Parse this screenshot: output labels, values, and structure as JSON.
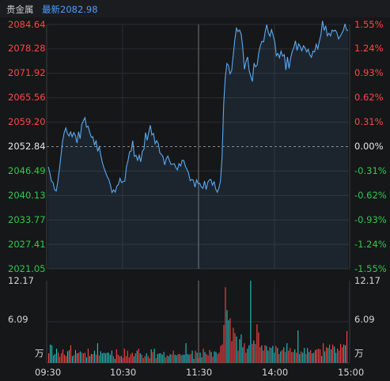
{
  "header": {
    "instrument_name": "贵金属",
    "latest_label": "最新2082.98"
  },
  "price_axis": {
    "left_labels": [
      "2084.64",
      "2078.28",
      "2071.92",
      "2065.56",
      "2059.20",
      "2052.84",
      "2046.49",
      "2040.13",
      "2033.77",
      "2027.41",
      "2021.05"
    ],
    "right_labels": [
      "1.55%",
      "1.24%",
      "0.93%",
      "0.62%",
      "0.31%",
      "0.00%",
      "-0.31%",
      "-0.62%",
      "-0.93%",
      "-1.24%",
      "-1.55%"
    ]
  },
  "volume_axis": {
    "left_labels": [
      "12.17",
      "6.09",
      "万"
    ],
    "right_labels": [
      "12.17",
      "6.09",
      "万"
    ]
  },
  "time_axis": [
    "09:30",
    "10:30",
    "11:30",
    "14:00",
    "15:00"
  ],
  "colors": {
    "up": "#ff4545",
    "down": "#2fc94f",
    "neutral": "#e6e6e6",
    "price_line": "#5aa9f0",
    "volume_up": "#ff4545",
    "volume_down": "#27c2c2"
  },
  "chart_data": [
    {
      "type": "line",
      "title": "",
      "xlabel": "",
      "ylabel": "",
      "x_ticks": [
        "09:30",
        "10:30",
        "11:30",
        "14:00",
        "15:00"
      ],
      "ylim": [
        2021.05,
        2084.64
      ],
      "prev_close": 2052.84,
      "series": [
        {
          "values": [
            2047.6,
            2046.0,
            2043.9,
            2043.5,
            2041.6,
            2041.3,
            2043.8,
            2047.0,
            2050.6,
            2054.3,
            2056.5,
            2057.7,
            2056.3,
            2055.6,
            2056.7,
            2055.4,
            2056.5,
            2055.7,
            2053.8,
            2056.7,
            2054.9,
            2058.6,
            2059.6,
            2060.4,
            2057.9,
            2058.2,
            2056.6,
            2055.3,
            2055.4,
            2053.2,
            2054.5,
            2051.6,
            2052.8,
            2050.5,
            2048.6,
            2047.2,
            2046.1,
            2045.0,
            2044.3,
            2042.8,
            2040.9,
            2041.6,
            2041.0,
            2042.6,
            2043.0,
            2044.6,
            2043.5,
            2043.8,
            2043.9,
            2047.6,
            2049.2,
            2051.5,
            2051.7,
            2054.4,
            2050.3,
            2050.6,
            2049.3,
            2050.6,
            2048.9,
            2051.6,
            2052.2,
            2056.5,
            2054.5,
            2056.5,
            2058.4,
            2055.9,
            2056.3,
            2053.6,
            2054.4,
            2053.6,
            2051.2,
            2050.8,
            2050.2,
            2048.1,
            2049.7,
            2050.4,
            2049.2,
            2048.2,
            2048.3,
            2048.4,
            2047.4,
            2046.8,
            2048.4,
            2047.8,
            2049.3,
            2049.2,
            2047.7,
            2046.9,
            2045.9,
            2044.0,
            2044.3,
            2044.1,
            2042.3,
            2044.2,
            2043.2,
            2043.3,
            2042.3,
            2042.0,
            2043.9,
            2041.7,
            2043.5,
            2044.2,
            2044.3,
            2042.8,
            2043.7,
            2041.8,
            2041.0,
            2042.1,
            2043.9,
            2050.0,
            2064.0,
            2071.0,
            2074.5,
            2074.0,
            2071.8,
            2072.6,
            2076.8,
            2080.8,
            2083.7,
            2082.8,
            2083.2,
            2082.1,
            2078.6,
            2073.0,
            2075.0,
            2076.2,
            2072.6,
            2071.2,
            2069.8,
            2074.6,
            2073.6,
            2074.1,
            2077.3,
            2079.1,
            2080.3,
            2080.1,
            2082.7,
            2084.6,
            2082.5,
            2081.6,
            2083.3,
            2081.8,
            2080.2,
            2076.5,
            2077.1,
            2076.0,
            2077.7,
            2076.4,
            2076.8,
            2072.8,
            2076.2,
            2073.2,
            2075.9,
            2077.6,
            2078.7,
            2080.4,
            2077.9,
            2079.6,
            2078.9,
            2077.8,
            2079.1,
            2078.6,
            2077.5,
            2078.2,
            2076.8,
            2076.1,
            2077.7,
            2077.5,
            2079.5,
            2078.3,
            2080.3,
            2082.0,
            2085.6,
            2083.1,
            2084.3,
            2081.7,
            2082.4,
            2081.7,
            2083.2,
            2082.9,
            2083.2,
            2082.5,
            2080.9,
            2081.5,
            2082.3,
            2083.1,
            2084.8,
            2083.3,
            2083.0
          ]
        }
      ]
    },
    {
      "type": "bar",
      "title": "",
      "xlabel": "",
      "ylabel": "万",
      "ylim": [
        0,
        12.17
      ],
      "series": [
        {
          "values": [
            1.4,
            2.7,
            2.6,
            1.1,
            1.3,
            2.1,
            1.5,
            0.9,
            1.4,
            2.0,
            1.2,
            1.0,
            1.7,
            1.9,
            2.6,
            1.0,
            1.1,
            1.9,
            1.4,
            1.5,
            1.7,
            1.5,
            1.4,
            1.5,
            0.8,
            2.1,
            1.0,
            1.3,
            1.3,
            1.8,
            1.2,
            2.9,
            1.1,
            1.7,
            1.4,
            1.5,
            1.4,
            1.5,
            1.5,
            1.2,
            1.8,
            1.0,
            0.6,
            2.0,
            1.2,
            1.0,
            1.0,
            0.7,
            2.1,
            1.0,
            1.8,
            0.8,
            1.3,
            1.5,
            1.0,
            1.4,
            1.8,
            2.1,
            1.4,
            1.2,
            0.7,
            1.0,
            1.4,
            1.0,
            0.7,
            2.0,
            1.6,
            2.1,
            0.7,
            1.3,
            1.4,
            1.4,
            1.2,
            1.6,
            0.8,
            1.1,
            1.0,
            1.3,
            1.2,
            1.8,
            1.2,
            1.1,
            1.3,
            1.3,
            1.1,
            1.2,
            1.2,
            2.9,
            1.3,
            1.2,
            1.3,
            1.8,
            0.6,
            1.8,
            1.5,
            0.7,
            1.5,
            0.8,
            2.1,
            1.6,
            1.3,
            1.1,
            1.9,
            1.6,
            0.9,
            1.7,
            1.6,
            1.3,
            1.5,
            2.5,
            2.7,
            5.6,
            11.2,
            7.8,
            6.3,
            6.6,
            3.2,
            5.2,
            4.4,
            3.9,
            1.8,
            3.5,
            4.2,
            2.3,
            2.9,
            1.5,
            2.1,
            2.6,
            12.17,
            2.8,
            3.3,
            2.8,
            5.7,
            4.5,
            2.3,
            2.6,
            1.8,
            2.6,
            2.5,
            1.8,
            2.3,
            2.2,
            2.5,
            1.5,
            2.5,
            2.2,
            1.3,
            1.7,
            1.9,
            2.3,
            1.6,
            2.9,
            1.8,
            2.2,
            1.6,
            1.6,
            2.0,
            1.5,
            4.8,
            1.3,
            1.7,
            1.5,
            2.2,
            1.3,
            2.2,
            1.6,
            1.9,
            1.4,
            1.5,
            1.9,
            2.0,
            2.1,
            2.0,
            1.0,
            2.9,
            1.7,
            2.3,
            2.2,
            2.7,
            2.0,
            2.7,
            2.4,
            1.5,
            2.1,
            1.8,
            2.8,
            2.3,
            2.7,
            2.6,
            4.7
          ]
        }
      ]
    }
  ]
}
